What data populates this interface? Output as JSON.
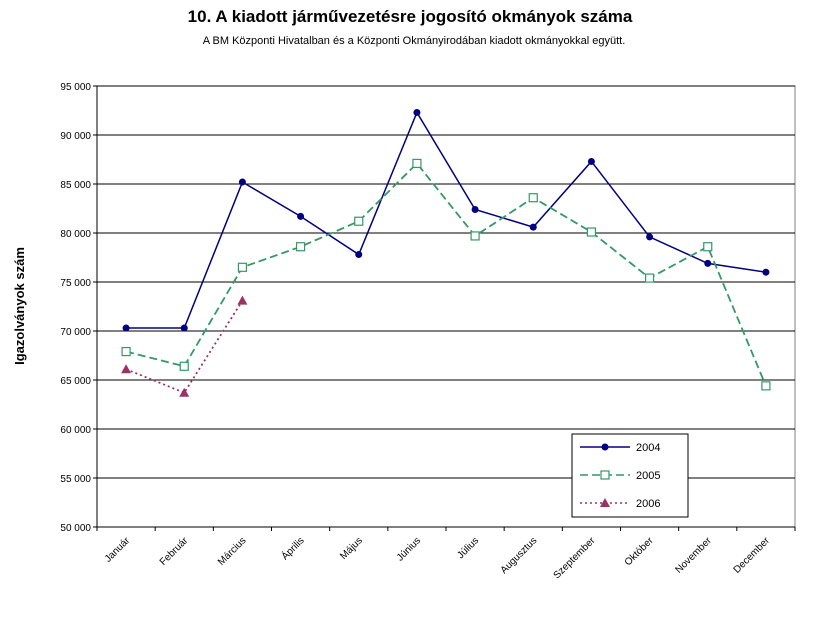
{
  "chart_data": {
    "type": "line",
    "title": "10. A  kiadott járművezetésre  jogosító okmányok száma",
    "subtitle": "A BM Központi Hivatalban és a Központi Okmányirodában kiadott okmányokkal együtt.",
    "y_label": "Igazolványok szám",
    "categories": [
      "Január",
      "Február",
      "Március",
      "Április",
      "Május",
      "Június",
      "Július",
      "Augusztus",
      "Szeptember",
      "Október",
      "November",
      "December"
    ],
    "series": [
      {
        "name": "2004",
        "color": "#000080",
        "marker": "circle",
        "dash": "solid",
        "values": [
          70300,
          70300,
          85200,
          81700,
          77800,
          92300,
          82400,
          80600,
          87300,
          79600,
          76900,
          76000
        ]
      },
      {
        "name": "2005",
        "color": "#339966",
        "marker": "square",
        "dash": "dashed",
        "values": [
          67900,
          66400,
          76500,
          78600,
          81200,
          87100,
          79700,
          83600,
          80100,
          75400,
          78600,
          64400
        ]
      },
      {
        "name": "2006",
        "color": "#993366",
        "marker": "triangle",
        "dash": "dotted",
        "values": [
          66100,
          63700,
          73100,
          null,
          null,
          null,
          null,
          null,
          null,
          null,
          null,
          null
        ]
      }
    ],
    "ylim": [
      50000,
      95000
    ],
    "yticks": [
      {
        "value": 50000,
        "label": "50 000"
      },
      {
        "value": 55000,
        "label": "55 000"
      },
      {
        "value": 60000,
        "label": "60 000"
      },
      {
        "value": 65000,
        "label": "65 000"
      },
      {
        "value": 70000,
        "label": "70 000"
      },
      {
        "value": 75000,
        "label": "75 000"
      },
      {
        "value": 80000,
        "label": "80 000"
      },
      {
        "value": 85000,
        "label": "85 000"
      },
      {
        "value": 90000,
        "label": "90 000"
      },
      {
        "value": 95000,
        "label": "95 000"
      }
    ],
    "grid": true,
    "legend": "lower-right"
  }
}
